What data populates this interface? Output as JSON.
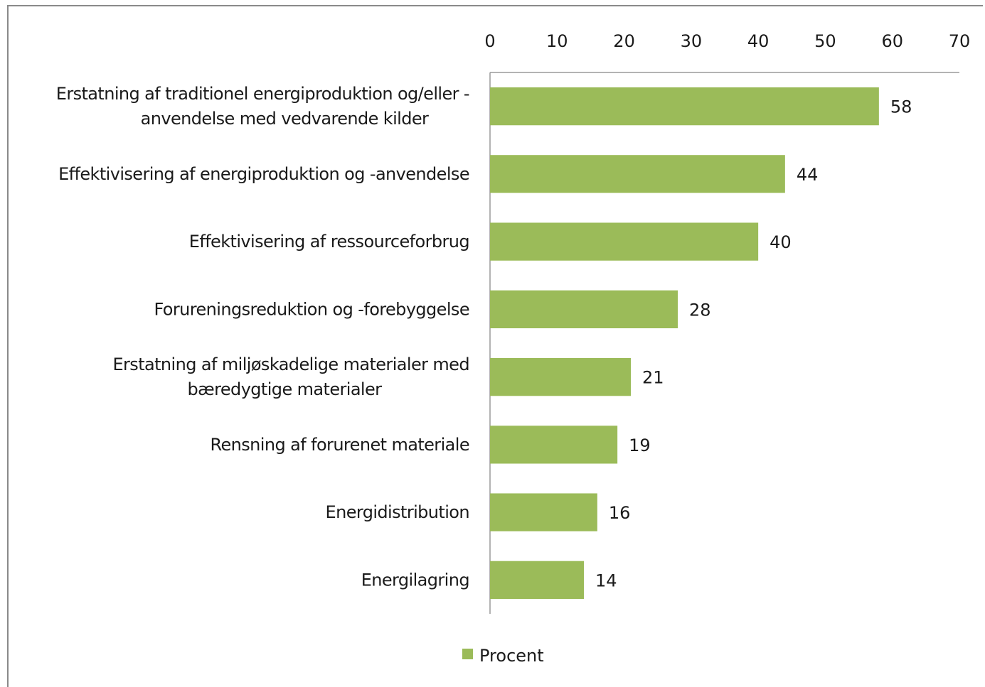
{
  "chart_data": {
    "type": "bar",
    "orientation": "horizontal",
    "categories": [
      [
        "Erstatning af traditionel energiproduktion og/eller -",
        "anvendelse med vedvarende kilder"
      ],
      [
        "Effektivisering af energiproduktion og -anvendelse"
      ],
      [
        "Effektivisering af ressourceforbrug"
      ],
      [
        "Forureningsreduktion og -forebyggelse"
      ],
      [
        "Erstatning af miljøskadelige materialer med",
        "bæredygtige materialer"
      ],
      [
        "Rensning af forurenet  materiale"
      ],
      [
        "Energidistribution"
      ],
      [
        "Energilagring"
      ]
    ],
    "series": [
      {
        "name": "Procent",
        "values": [
          58,
          44,
          40,
          28,
          21,
          19,
          16,
          14
        ],
        "color": "#9bbb59"
      }
    ],
    "xlim": [
      0,
      70
    ],
    "xticks": [
      0,
      10,
      20,
      30,
      40,
      50,
      60,
      70
    ],
    "x_axis_position": "top",
    "grid": false,
    "legend": {
      "position": "bottom",
      "label": "Procent"
    },
    "data_labels": true,
    "title": "",
    "xlabel": "",
    "ylabel": ""
  }
}
